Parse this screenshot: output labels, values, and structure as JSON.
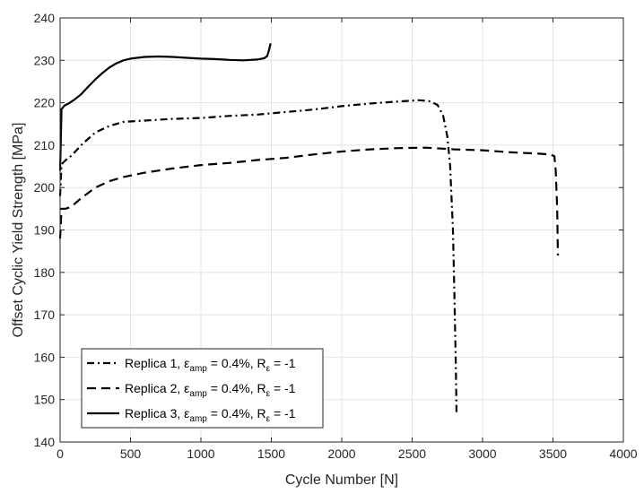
{
  "chart_data": {
    "type": "line",
    "xlabel": "Cycle Number [N]",
    "ylabel": "Offset Cyclic Yield Strength [MPa]",
    "xlim": [
      0,
      4000
    ],
    "ylim": [
      140,
      240
    ],
    "xticks": [
      0,
      500,
      1000,
      1500,
      2000,
      2500,
      3000,
      3500,
      4000
    ],
    "yticks": [
      140,
      150,
      160,
      170,
      180,
      190,
      200,
      210,
      220,
      230,
      240
    ],
    "grid": true,
    "legend_position": "bottom-left",
    "series": [
      {
        "name": "Replica 1",
        "legend_prefix": "Replica 1, ",
        "legend_eps": "ε",
        "legend_eps_sub": "amp",
        "legend_mid": " = 0.4%, R",
        "legend_r_sub": "ε",
        "legend_end": " = -1",
        "line_style": "dash-dot",
        "x": [
          0,
          10,
          40,
          80,
          150,
          250,
          350,
          450,
          600,
          800,
          1000,
          1200,
          1400,
          1600,
          1800,
          2000,
          2200,
          2400,
          2550,
          2620,
          2680,
          2720,
          2750,
          2770,
          2790,
          2800,
          2810,
          2815
        ],
        "y": [
          198,
          205.5,
          206.5,
          207.5,
          210,
          213,
          214.5,
          215.5,
          215.8,
          216.2,
          216.4,
          216.9,
          217.2,
          217.8,
          218.4,
          219.2,
          219.8,
          220.3,
          220.6,
          220.4,
          219.5,
          217,
          212,
          205,
          190,
          175,
          158,
          146.5
        ]
      },
      {
        "name": "Replica 2",
        "legend_prefix": "Replica 2, ",
        "legend_eps": "ε",
        "legend_eps_sub": "amp",
        "legend_mid": " = 0.4%, R",
        "legend_r_sub": "ε",
        "legend_end": " = -1",
        "line_style": "dashed",
        "x": [
          0,
          10,
          40,
          80,
          150,
          250,
          350,
          450,
          600,
          800,
          1000,
          1200,
          1400,
          1600,
          1800,
          2000,
          2200,
          2400,
          2600,
          2800,
          3000,
          3200,
          3400,
          3480,
          3510,
          3520,
          3530,
          3535
        ],
        "y": [
          188,
          195,
          195,
          195.5,
          197.5,
          200,
          201.5,
          202.5,
          203.5,
          204.5,
          205.3,
          205.8,
          206.5,
          207,
          207.8,
          208.5,
          209,
          209.3,
          209.4,
          209,
          208.8,
          208.3,
          208,
          207.8,
          207.4,
          204,
          195,
          184
        ]
      },
      {
        "name": "Replica 3",
        "legend_prefix": "Replica 3, ",
        "legend_eps": "ε",
        "legend_eps_sub": "amp",
        "legend_mid": " = 0.4%, R",
        "legend_r_sub": "ε",
        "legend_end": " = -1",
        "line_style": "solid",
        "x": [
          0,
          10,
          30,
          60,
          100,
          150,
          200,
          250,
          300,
          350,
          400,
          450,
          500,
          600,
          700,
          800,
          900,
          1000,
          1100,
          1200,
          1300,
          1400,
          1450,
          1470,
          1480,
          1490,
          1495
        ],
        "y": [
          204,
          218.5,
          219.3,
          219.8,
          220.7,
          222,
          223.8,
          225.5,
          227,
          228.3,
          229.3,
          230,
          230.4,
          230.8,
          230.9,
          230.8,
          230.6,
          230.4,
          230.3,
          230.1,
          230,
          230.2,
          230.5,
          231,
          232,
          233.3,
          234
        ]
      }
    ]
  }
}
